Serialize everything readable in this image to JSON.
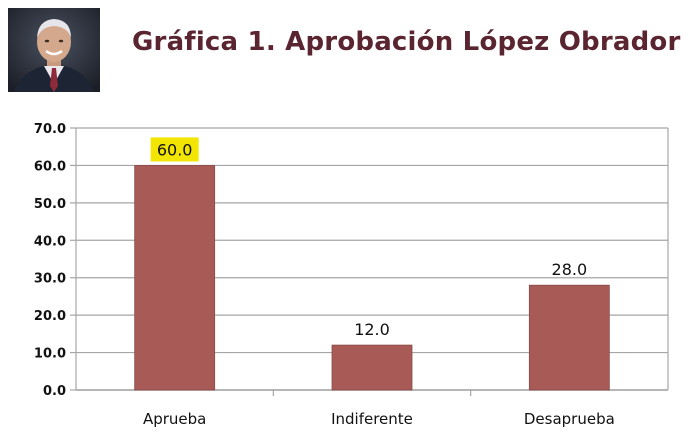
{
  "header": {
    "title": "Gráfica 1. Aprobación López Obrador",
    "photo_alt": "portrait"
  },
  "colors": {
    "bar": "#A75A56",
    "bar_edge": "#8B4A47",
    "gridline": "#A6A6A6",
    "highlight": "#F2E500",
    "title": "#5A2530"
  },
  "chart_data": {
    "type": "bar",
    "title": "Gráfica 1. Aprobación López Obrador",
    "xlabel": "",
    "ylabel": "",
    "categories": [
      "Aprueba",
      "Indiferente",
      "Desaprueba"
    ],
    "values": [
      60.0,
      12.0,
      28.0
    ],
    "data_labels": [
      "60.0",
      "12.0",
      "28.0"
    ],
    "highlighted_label": "60.0",
    "ylim": [
      0,
      70
    ],
    "yticks": [
      0,
      10,
      20,
      30,
      40,
      50,
      60,
      70
    ],
    "ytick_labels": [
      "0.0",
      "10.0",
      "20.0",
      "30.0",
      "40.0",
      "50.0",
      "60.0",
      "70.0"
    ],
    "grid": true,
    "legend": "none"
  }
}
